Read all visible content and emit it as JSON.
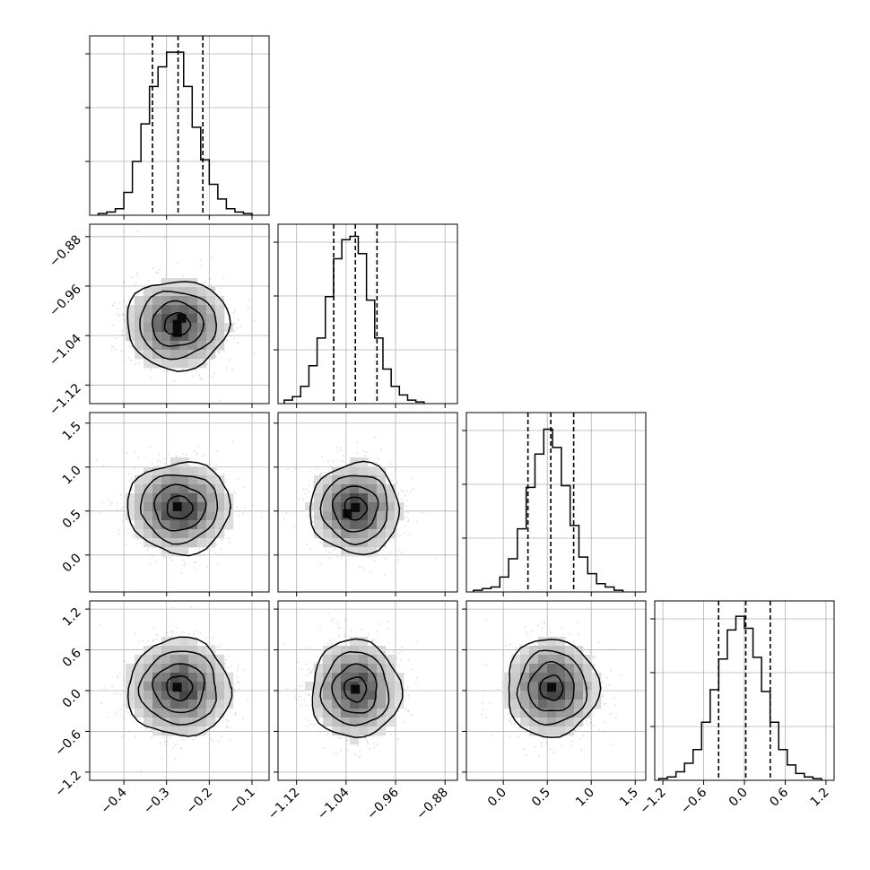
{
  "chart_data": {
    "type": "corner",
    "n_params": 4,
    "axes": [
      {
        "index": 0,
        "range": [
          -0.48,
          -0.06
        ],
        "ticks": [
          -0.4,
          -0.3,
          -0.2,
          -0.1
        ],
        "tick_labels": [
          "−0.4",
          "−0.3",
          "−0.2",
          "−0.1"
        ]
      },
      {
        "index": 1,
        "range": [
          -1.15,
          -0.86
        ],
        "ticks": [
          -1.12,
          -1.04,
          -0.96,
          -0.88
        ],
        "tick_labels": [
          "−1.12",
          "−1.04",
          "−0.96",
          "−0.88"
        ]
      },
      {
        "index": 2,
        "range": [
          -0.42,
          1.62
        ],
        "ticks": [
          0.0,
          0.5,
          1.0,
          1.5
        ],
        "tick_labels": [
          "0.0",
          "0.5",
          "1.0",
          "1.5"
        ]
      },
      {
        "index": 3,
        "range": [
          -1.32,
          1.32
        ],
        "ticks": [
          -1.2,
          -0.6,
          0.0,
          0.6,
          1.2
        ],
        "tick_labels": [
          "−1.2",
          "−0.6",
          "0.0",
          "0.6",
          "1.2"
        ]
      }
    ],
    "marginals": [
      {
        "param": 0,
        "bin_start": -0.46,
        "bin_width": 0.02,
        "counts": [
          1,
          2,
          4,
          14,
          33,
          56,
          79,
          91,
          100,
          100,
          79,
          54,
          34,
          19,
          10,
          4,
          2,
          1
        ],
        "quantiles": [
          -0.333,
          -0.273,
          -0.215
        ],
        "ymax": 110
      },
      {
        "param": 1,
        "bin_start": -1.14,
        "bin_width": 0.0133,
        "counts": [
          2,
          4,
          10,
          22,
          38,
          62,
          84,
          95,
          97,
          87,
          60,
          38,
          20,
          10,
          5,
          2,
          1
        ],
        "quantiles": [
          -1.06,
          -1.025,
          -0.99
        ],
        "ymax": 104
      },
      {
        "param": 2,
        "bin_start": -0.34,
        "bin_width": 0.1,
        "counts": [
          1,
          2,
          3,
          9,
          20,
          38,
          63,
          83,
          98,
          87,
          64,
          40,
          21,
          11,
          5,
          3,
          1
        ],
        "quantiles": [
          0.28,
          0.54,
          0.8
        ],
        "ymax": 108
      },
      {
        "param": 3,
        "bin_start": -1.26,
        "bin_width": 0.126,
        "counts": [
          1,
          2,
          5,
          10,
          18,
          34,
          53,
          71,
          88,
          96,
          89,
          72,
          52,
          34,
          18,
          9,
          4,
          2,
          1
        ],
        "quantiles": [
          -0.38,
          0.02,
          0.38
        ],
        "ymax": 105
      }
    ],
    "joints": [
      {
        "x_param": 0,
        "y_param": 1,
        "mean": [
          -0.275,
          -1.022
        ],
        "sd": [
          0.06,
          0.036
        ],
        "cells": [
          [
            -0.265,
            -1.012
          ],
          [
            -0.275,
            -1.022
          ],
          [
            -0.275,
            -1.035
          ]
        ]
      },
      {
        "x_param": 0,
        "y_param": 2,
        "mean": [
          -0.27,
          0.54
        ],
        "sd": [
          0.06,
          0.26
        ],
        "cells": [
          [
            -0.275,
            0.55
          ]
        ]
      },
      {
        "x_param": 1,
        "y_param": 2,
        "mean": [
          -1.025,
          0.53
        ],
        "sd": [
          0.036,
          0.26
        ],
        "cells": [
          [
            -1.038,
            0.47
          ],
          [
            -1.025,
            0.54
          ]
        ]
      },
      {
        "x_param": 0,
        "y_param": 3,
        "mean": [
          -0.27,
          0.04
        ],
        "sd": [
          0.06,
          0.36
        ],
        "cells": [
          [
            -0.275,
            0.05
          ]
        ]
      },
      {
        "x_param": 1,
        "y_param": 3,
        "mean": [
          -1.025,
          0.02
        ],
        "sd": [
          0.036,
          0.36
        ],
        "cells": [
          [
            -1.025,
            0.02
          ]
        ]
      },
      {
        "x_param": 2,
        "y_param": 3,
        "mean": [
          0.55,
          0.04
        ],
        "sd": [
          0.26,
          0.36
        ],
        "cells": [
          [
            0.55,
            0.05
          ]
        ]
      }
    ],
    "contour_levels_sigma": [
      0.5,
      1.0,
      1.5,
      2.0
    ],
    "grid": true,
    "legend": "none",
    "title": "",
    "xlabel": "",
    "ylabel": ""
  }
}
